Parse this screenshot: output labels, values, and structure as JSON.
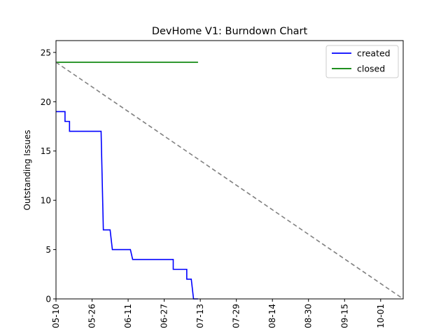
{
  "chart_data": {
    "type": "line",
    "title": "DevHome V1: Burndown Chart",
    "xlabel": "",
    "ylabel": "Outstanding Issues",
    "x_ticks": [
      "05-10",
      "05-26",
      "06-11",
      "06-27",
      "07-13",
      "07-29",
      "08-14",
      "08-30",
      "09-15",
      "10-01"
    ],
    "xlim": [
      "2023-05-10",
      "2023-10-11"
    ],
    "ylim": [
      0,
      26.2
    ],
    "y_ticks": [
      0,
      5,
      10,
      15,
      20,
      25
    ],
    "grid": false,
    "legend_position": "top-right",
    "series": [
      {
        "name": "created",
        "color": "#0000ff",
        "style": "solid",
        "points": [
          [
            "2023-05-10",
            19
          ],
          [
            "2023-05-14",
            19
          ],
          [
            "2023-05-14",
            18
          ],
          [
            "2023-05-16",
            18
          ],
          [
            "2023-05-16",
            17
          ],
          [
            "2023-05-30",
            17
          ],
          [
            "2023-05-31",
            7
          ],
          [
            "2023-06-03",
            7
          ],
          [
            "2023-06-04",
            5
          ],
          [
            "2023-06-12",
            5
          ],
          [
            "2023-06-13",
            4
          ],
          [
            "2023-07-01",
            4
          ],
          [
            "2023-07-01",
            3
          ],
          [
            "2023-07-07",
            3
          ],
          [
            "2023-07-07",
            2
          ],
          [
            "2023-07-09",
            2
          ],
          [
            "2023-07-10",
            0
          ],
          [
            "2023-07-12",
            0
          ]
        ]
      },
      {
        "name": "closed",
        "color": "#008000",
        "style": "solid",
        "points": [
          [
            "2023-05-10",
            24
          ],
          [
            "2023-07-12",
            24
          ]
        ]
      },
      {
        "name": "",
        "color": "#808080",
        "style": "dashed",
        "points": [
          [
            "2023-05-10",
            24
          ],
          [
            "2023-10-11",
            0
          ]
        ]
      }
    ]
  }
}
